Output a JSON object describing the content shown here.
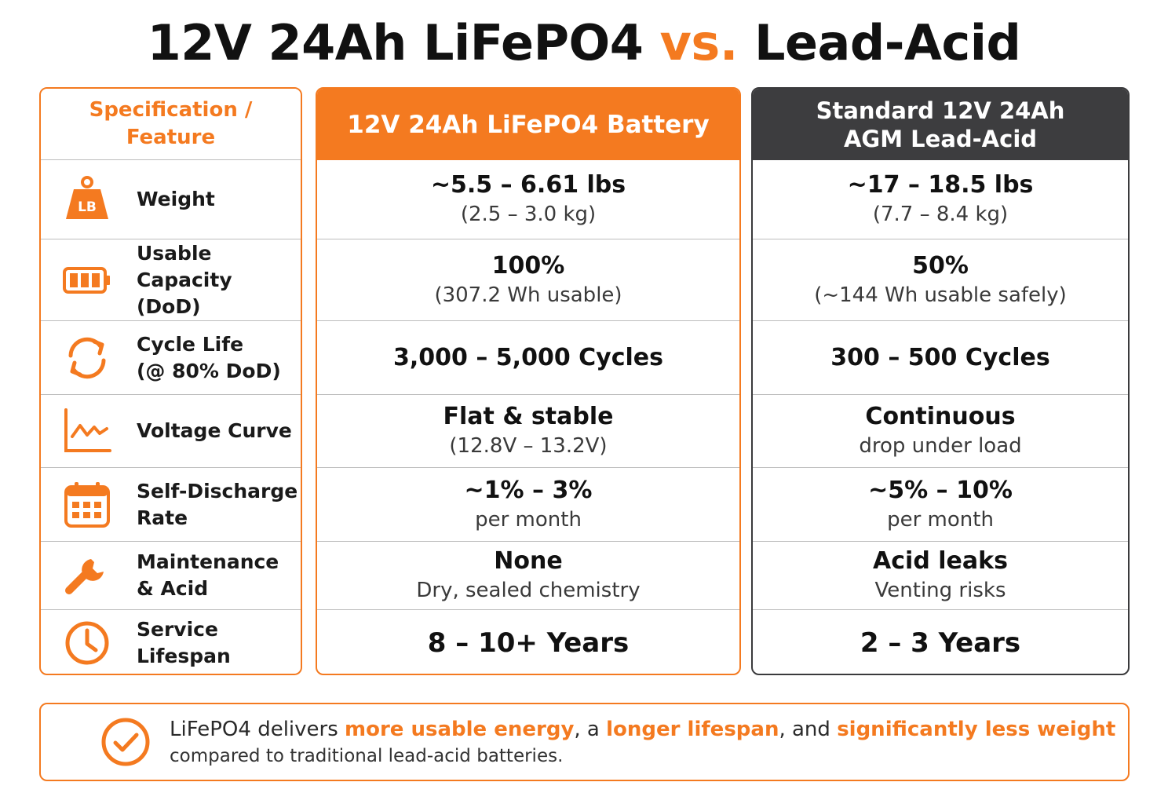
{
  "title": {
    "part1": "12V 24Ah LiFePO4",
    "accent": "vs.",
    "part2": "Lead-Acid"
  },
  "colors": {
    "accent": "#f47a20",
    "dark_header": "#3d3d3f"
  },
  "spec_column": {
    "header_line1": "Specification /",
    "header_line2": "Feature",
    "rows": [
      {
        "icon": "weight-lb-icon",
        "icon_text": "LB",
        "line1": "Weight",
        "line2": ""
      },
      {
        "icon": "battery-icon",
        "line1": "Usable Capacity",
        "line2": "(DoD)"
      },
      {
        "icon": "cycle-icon",
        "line1": "Cycle Life",
        "line2": "(@ 80% DoD)"
      },
      {
        "icon": "line-chart-icon",
        "line1": "Voltage Curve",
        "line2": ""
      },
      {
        "icon": "calendar-icon",
        "line1": "Self-Discharge",
        "line2": "Rate"
      },
      {
        "icon": "wrench-icon",
        "line1": "Maintenance",
        "line2": "& Acid"
      },
      {
        "icon": "clock-icon",
        "line1": "Service",
        "line2": "Lifespan"
      }
    ]
  },
  "lifepo4_column": {
    "header": "12V 24Ah LiFePO4 Battery",
    "rows": [
      {
        "main": "~5.5 – 6.61 lbs",
        "sub": "(2.5 – 3.0 kg)"
      },
      {
        "main": "100%",
        "sub": "(307.2 Wh usable)"
      },
      {
        "main": "3,000 – 5,000 Cycles",
        "sub": ""
      },
      {
        "main": "Flat & stable",
        "sub": "(12.8V – 13.2V)"
      },
      {
        "main": "~1% – 3%",
        "sub": "per month"
      },
      {
        "main": "None",
        "sub": "Dry, sealed chemistry"
      },
      {
        "main": "8 – 10+ Years",
        "sub": ""
      }
    ]
  },
  "leadacid_column": {
    "header_line1": "Standard 12V 24Ah",
    "header_line2": "AGM Lead-Acid",
    "rows": [
      {
        "main": "~17 – 18.5 lbs",
        "sub": "(7.7 – 8.4 kg)"
      },
      {
        "main": "50%",
        "sub": "(~144 Wh usable safely)"
      },
      {
        "main": "300 – 500 Cycles",
        "sub": ""
      },
      {
        "main": "Continuous",
        "sub": "drop under load"
      },
      {
        "main": "~5% – 10%",
        "sub": "per month"
      },
      {
        "main": "Acid leaks",
        "sub": "Venting risks"
      },
      {
        "main": "2 – 3 Years",
        "sub": ""
      }
    ]
  },
  "summary": {
    "icon": "check-circle-icon",
    "t1": "LiFePO4 delivers ",
    "h1": "more usable energy",
    "t2": ", a ",
    "h2": "longer lifespan",
    "t3": ", and ",
    "h3": "significantly less weight",
    "line2": "compared to traditional lead-acid batteries."
  }
}
